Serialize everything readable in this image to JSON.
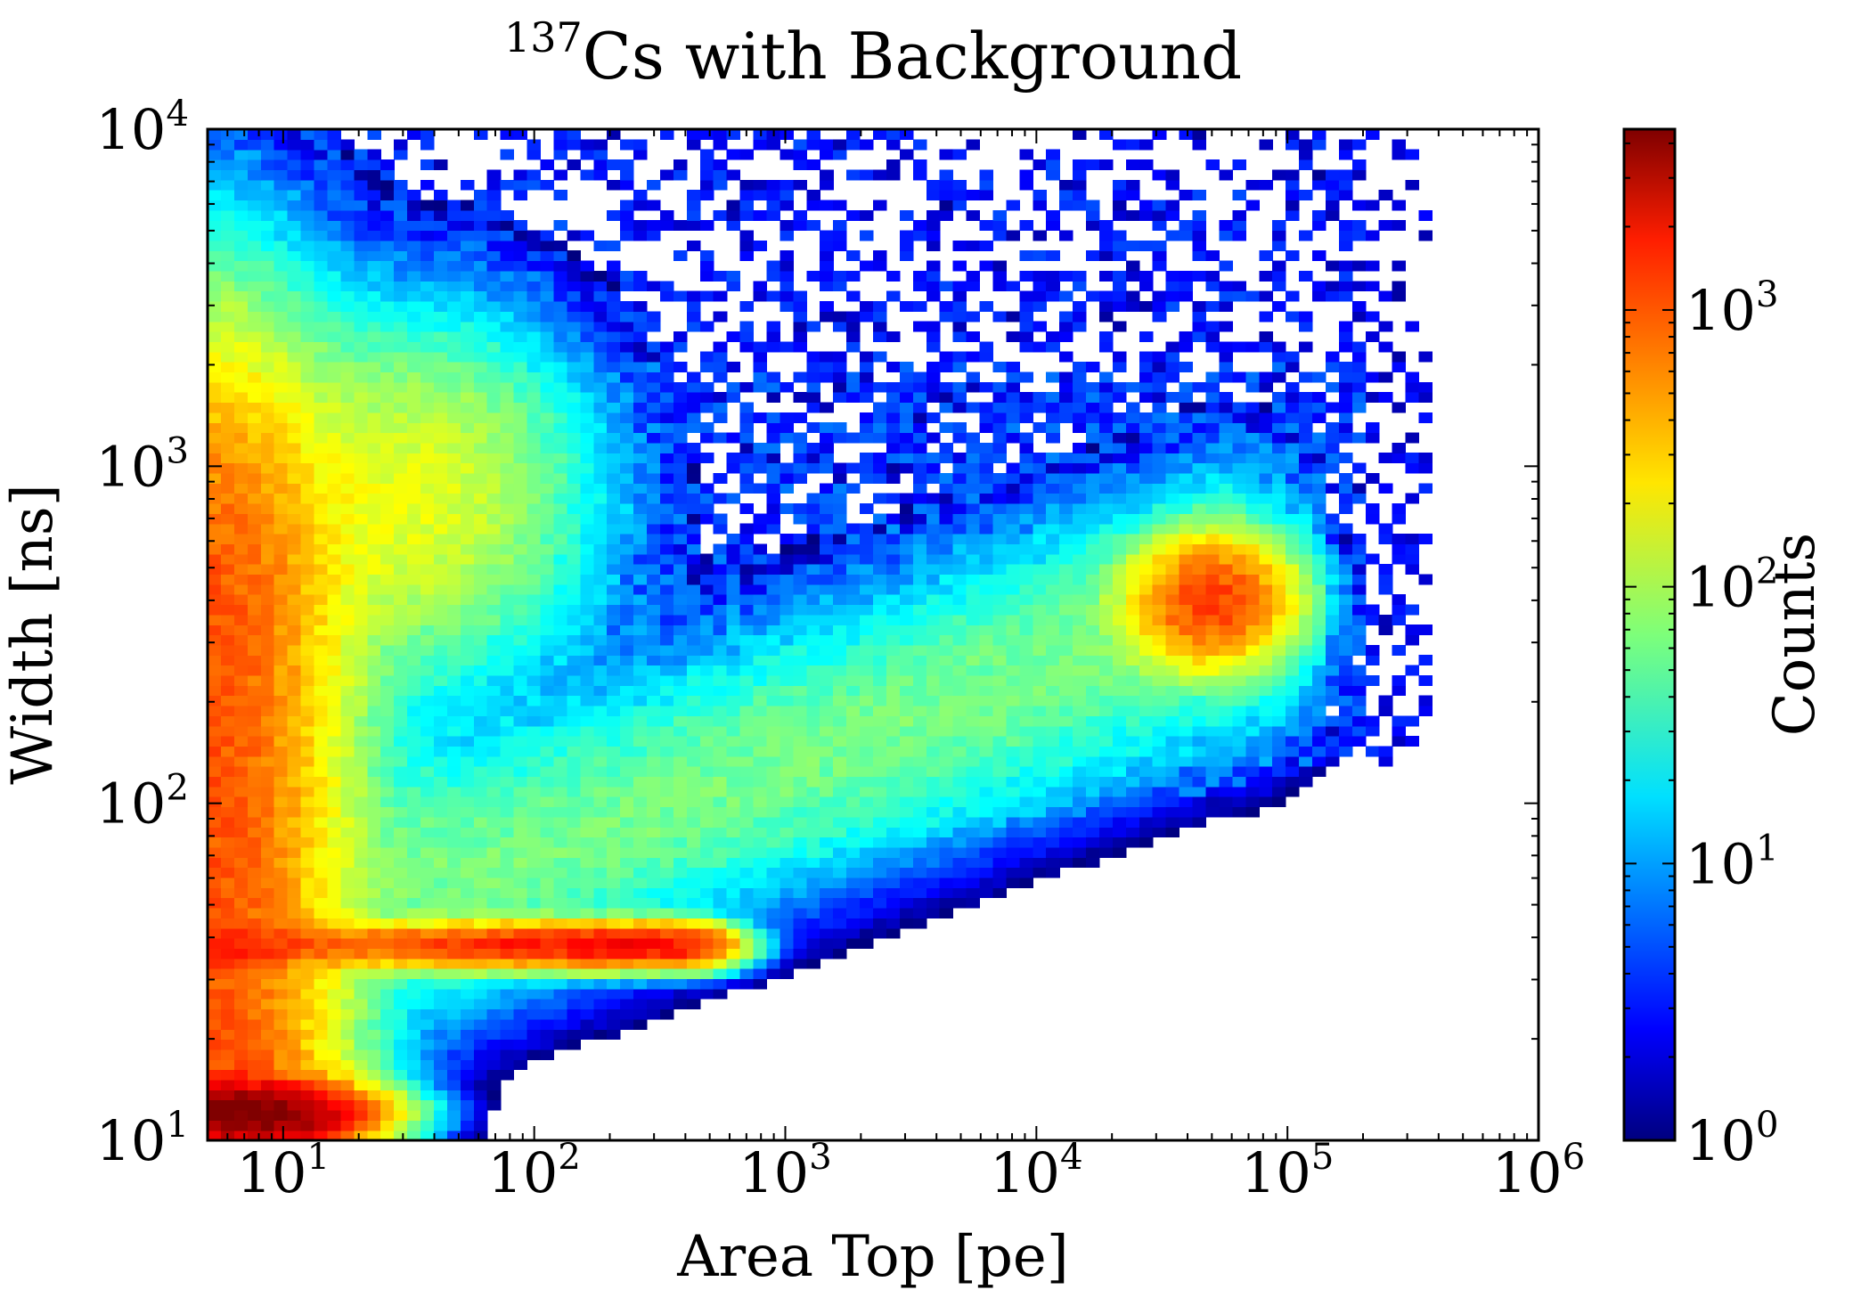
{
  "chart_data": {
    "type": "heatmap",
    "title_sup": "137",
    "title_main": "Cs with Background",
    "xlabel": "Area Top [pe]",
    "ylabel": "Width [ns]",
    "colorbar_label": "Counts",
    "x_scale": "log",
    "y_scale": "log",
    "xlim": [
      5,
      1000000
    ],
    "ylim": [
      10,
      10000
    ],
    "colorbar_scale": "log",
    "colorbar_lim": [
      1,
      4500
    ],
    "colormap": "jet",
    "x_ticks": [
      {
        "base": "10",
        "exp": "1"
      },
      {
        "base": "10",
        "exp": "2"
      },
      {
        "base": "10",
        "exp": "3"
      },
      {
        "base": "10",
        "exp": "4"
      },
      {
        "base": "10",
        "exp": "5"
      },
      {
        "base": "10",
        "exp": "6"
      }
    ],
    "y_ticks": [
      {
        "base": "10",
        "exp": "1"
      },
      {
        "base": "10",
        "exp": "2"
      },
      {
        "base": "10",
        "exp": "3"
      },
      {
        "base": "10",
        "exp": "4"
      }
    ],
    "colorbar_ticks": [
      {
        "base": "10",
        "exp": "0"
      },
      {
        "base": "10",
        "exp": "1"
      },
      {
        "base": "10",
        "exp": "2"
      },
      {
        "base": "10",
        "exp": "3"
      }
    ],
    "features": [
      {
        "name": "low-area vertical band",
        "x_range": [
          5,
          25
        ],
        "y_range": [
          10,
          1500
        ],
        "peak_counts": 800
      },
      {
        "name": "bottom-left hotspot",
        "x": 8,
        "y": 12,
        "peak_counts": 4500
      },
      {
        "name": "horizontal band",
        "x_range": [
          5,
          400
        ],
        "y": 38,
        "peak_counts": 1500
      },
      {
        "name": "upper-left lobe",
        "x": 35,
        "y": 800,
        "peak_counts": 150
      },
      {
        "name": "diagonal band",
        "x_range": [
          50,
          50000
        ],
        "y_range": [
          40,
          400
        ],
        "peak_counts": 60
      },
      {
        "name": "Cs-137 peak",
        "x": 50000,
        "y": 400,
        "peak_counts": 900
      },
      {
        "name": "sparse background",
        "x_range": [
          5,
          1000000
        ],
        "y_range": [
          20,
          10000
        ],
        "peak_counts": 3
      }
    ]
  }
}
